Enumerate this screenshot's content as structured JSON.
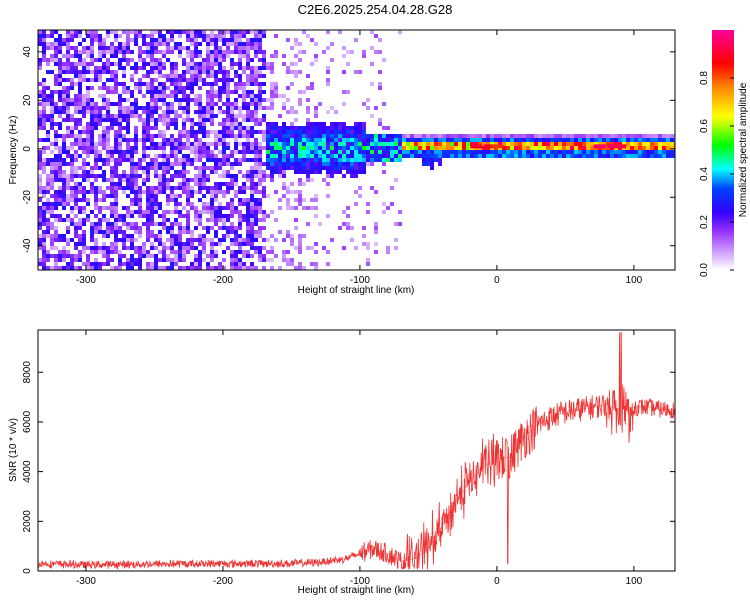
{
  "figure": {
    "title": "C2E6.2025.254.04.28.G28"
  },
  "chart_data": [
    {
      "type": "heatmap",
      "title": "C2E6.2025.254.04.28.G28",
      "xlabel": "Height of straight line (km)",
      "ylabel": "Frequency (Hz)",
      "xlim": [
        -335,
        130
      ],
      "ylim": [
        -50,
        49
      ],
      "xticks": [
        -300,
        -200,
        -100,
        0,
        100
      ],
      "xtick_labels": [
        "-300",
        "-200",
        "-100",
        "0",
        "100"
      ],
      "yticks": [
        -40,
        -20,
        0,
        20,
        40
      ],
      "ytick_labels": [
        "-40",
        "-20",
        "0",
        "20",
        "40"
      ],
      "colorbar": {
        "label": "Normalized spectral amplitude",
        "range": [
          0,
          1
        ],
        "ticks": [
          0.0,
          0.2,
          0.4,
          0.6,
          0.8
        ],
        "tick_labels": [
          "0.0",
          "0.2",
          "0.4",
          "0.6",
          "0.8"
        ],
        "colors": [
          "#ffffff",
          "#9933ff",
          "#0000ff",
          "#00ffff",
          "#00ff00",
          "#ffff00",
          "#ff8800",
          "#ff0000",
          "#ff00aa"
        ]
      },
      "description_regions": [
        {
          "x_range": [
            -335,
            -170
          ],
          "freq_range": [
            -50,
            49
          ],
          "amplitude": 0.15
        },
        {
          "x_range": [
            -170,
            -70
          ],
          "freq_range": [
            -8,
            10
          ],
          "amplitude": 0.45
        },
        {
          "x_range": [
            -70,
            130
          ],
          "freq_range": [
            -3,
            3
          ],
          "amplitude": 0.8
        }
      ],
      "grid": false
    },
    {
      "type": "line",
      "xlabel": "Height of straight line (km)",
      "ylabel": "SNR (10 * v/v)",
      "xlim": [
        -335,
        130
      ],
      "ylim": [
        0,
        9700
      ],
      "xticks": [
        -300,
        -200,
        -100,
        0,
        100
      ],
      "xtick_labels": [
        "-300",
        "-200",
        "-100",
        "0",
        "100"
      ],
      "yticks": [
        0,
        2000,
        4000,
        6000,
        8000
      ],
      "ytick_labels": [
        "0",
        "2000",
        "4000",
        "6000",
        "8000"
      ],
      "series": [
        {
          "name": "SNR",
          "color": "#ee3333",
          "x": [
            -335,
            -300,
            -250,
            -200,
            -150,
            -130,
            -110,
            -100,
            -90,
            -80,
            -70,
            -60,
            -50,
            -40,
            -30,
            -20,
            -10,
            0,
            10,
            20,
            30,
            40,
            50,
            60,
            70,
            80,
            90,
            100,
            110,
            120,
            130
          ],
          "y": [
            300,
            250,
            280,
            300,
            300,
            350,
            500,
            700,
            900,
            700,
            400,
            500,
            900,
            1800,
            2800,
            3600,
            4200,
            4500,
            4600,
            5400,
            5900,
            6200,
            6400,
            6500,
            6600,
            6700,
            6500,
            6600,
            6600,
            6500,
            6500
          ]
        }
      ],
      "grid": false
    }
  ]
}
